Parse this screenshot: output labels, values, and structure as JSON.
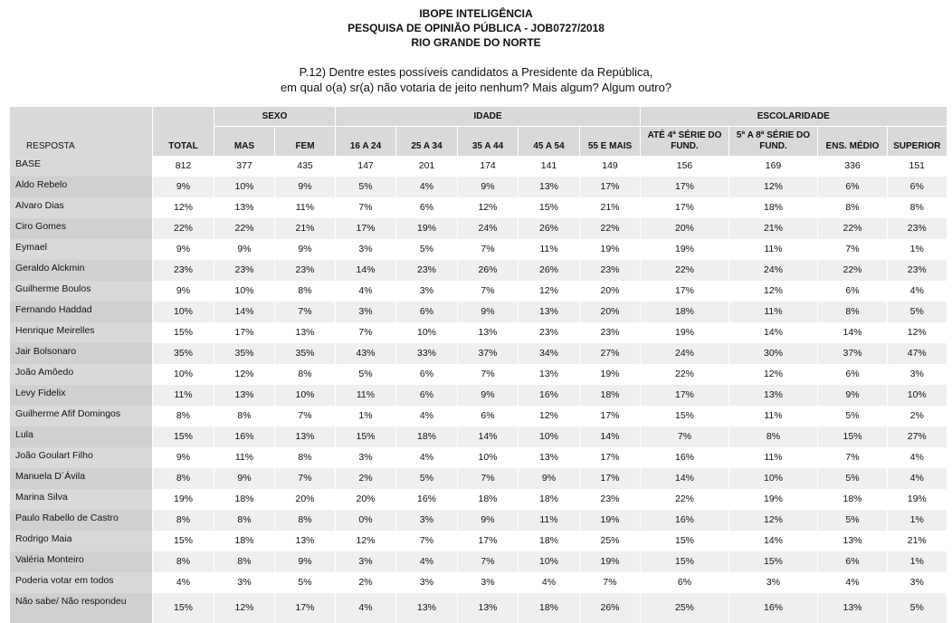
{
  "header": {
    "lines": [
      "IBOPE INTELIGÊNCIA",
      "PESQUISA DE OPINIÃO PÚBLICA - JOB0727/2018",
      "RIO GRANDE DO NORTE"
    ],
    "question": [
      "P.12) Dentre estes possíveis candidatos a Presidente da República,",
      "em qual o(a) sr(a) não votaria de jeito nenhum? Mais algum? Algum outro?"
    ]
  },
  "table": {
    "label_header": "RESPOSTA",
    "total_header": "TOTAL",
    "groups": [
      {
        "label": "SEXO",
        "columns": [
          "MAS",
          "FEM"
        ]
      },
      {
        "label": "IDADE",
        "columns": [
          "16 A 24",
          "25 A 34",
          "35 A 44",
          "45 A 54",
          "55 E MAIS"
        ]
      },
      {
        "label": "ESCOLARIDADE",
        "columns": [
          "ATÉ 4ª SÉRIE DO FUND.",
          "5ª A 8ª SÉRIE DO FUND.",
          "ENS. MÉDIO",
          "SUPERIOR"
        ]
      }
    ],
    "rows": [
      {
        "label": "BASE",
        "cells": [
          "812",
          "377",
          "435",
          "147",
          "201",
          "174",
          "141",
          "149",
          "156",
          "169",
          "336",
          "151"
        ]
      },
      {
        "label": "Aldo Rebelo",
        "cells": [
          "9%",
          "10%",
          "9%",
          "5%",
          "4%",
          "9%",
          "13%",
          "17%",
          "17%",
          "12%",
          "6%",
          "6%"
        ]
      },
      {
        "label": "Alvaro Dias",
        "cells": [
          "12%",
          "13%",
          "11%",
          "7%",
          "6%",
          "12%",
          "15%",
          "21%",
          "17%",
          "18%",
          "8%",
          "8%"
        ]
      },
      {
        "label": "Ciro Gomes",
        "cells": [
          "22%",
          "22%",
          "21%",
          "17%",
          "19%",
          "24%",
          "26%",
          "22%",
          "20%",
          "21%",
          "22%",
          "23%"
        ]
      },
      {
        "label": "Eymael",
        "cells": [
          "9%",
          "9%",
          "9%",
          "3%",
          "5%",
          "7%",
          "11%",
          "19%",
          "19%",
          "11%",
          "7%",
          "1%"
        ]
      },
      {
        "label": "Geraldo Alckmin",
        "cells": [
          "23%",
          "23%",
          "23%",
          "14%",
          "23%",
          "26%",
          "26%",
          "23%",
          "22%",
          "24%",
          "22%",
          "23%"
        ]
      },
      {
        "label": "Guilherme Boulos",
        "cells": [
          "9%",
          "10%",
          "8%",
          "4%",
          "3%",
          "7%",
          "12%",
          "20%",
          "17%",
          "12%",
          "6%",
          "4%"
        ]
      },
      {
        "label": "Fernando Haddad",
        "cells": [
          "10%",
          "14%",
          "7%",
          "3%",
          "6%",
          "9%",
          "13%",
          "20%",
          "18%",
          "11%",
          "8%",
          "5%"
        ]
      },
      {
        "label": "Henrique Meirelles",
        "cells": [
          "15%",
          "17%",
          "13%",
          "7%",
          "10%",
          "13%",
          "23%",
          "23%",
          "19%",
          "14%",
          "14%",
          "12%"
        ]
      },
      {
        "label": "Jair Bolsonaro",
        "cells": [
          "35%",
          "35%",
          "35%",
          "43%",
          "33%",
          "37%",
          "34%",
          "27%",
          "24%",
          "30%",
          "37%",
          "47%"
        ]
      },
      {
        "label": "João Amôedo",
        "cells": [
          "10%",
          "12%",
          "8%",
          "5%",
          "6%",
          "7%",
          "13%",
          "19%",
          "22%",
          "12%",
          "6%",
          "3%"
        ]
      },
      {
        "label": "Levy Fidelix",
        "cells": [
          "11%",
          "13%",
          "10%",
          "11%",
          "6%",
          "9%",
          "16%",
          "18%",
          "17%",
          "13%",
          "9%",
          "10%"
        ]
      },
      {
        "label": "Guilherme Afif Domingos",
        "cells": [
          "8%",
          "8%",
          "7%",
          "1%",
          "4%",
          "6%",
          "12%",
          "17%",
          "15%",
          "11%",
          "5%",
          "2%"
        ]
      },
      {
        "label": "Lula",
        "cells": [
          "15%",
          "16%",
          "13%",
          "15%",
          "18%",
          "14%",
          "10%",
          "14%",
          "7%",
          "8%",
          "15%",
          "27%"
        ]
      },
      {
        "label": "João Goulart Filho",
        "cells": [
          "9%",
          "11%",
          "8%",
          "3%",
          "4%",
          "10%",
          "13%",
          "17%",
          "16%",
          "11%",
          "7%",
          "4%"
        ]
      },
      {
        "label": "Manuela D´Ávila",
        "cells": [
          "8%",
          "9%",
          "7%",
          "2%",
          "5%",
          "7%",
          "9%",
          "17%",
          "14%",
          "10%",
          "5%",
          "4%"
        ]
      },
      {
        "label": "Marina Silva",
        "cells": [
          "19%",
          "18%",
          "20%",
          "20%",
          "16%",
          "18%",
          "18%",
          "23%",
          "22%",
          "19%",
          "18%",
          "19%"
        ]
      },
      {
        "label": "Paulo Rabello de Castro",
        "cells": [
          "8%",
          "8%",
          "8%",
          "0%",
          "3%",
          "9%",
          "11%",
          "19%",
          "16%",
          "12%",
          "5%",
          "1%"
        ]
      },
      {
        "label": "Rodrigo Maia",
        "cells": [
          "15%",
          "18%",
          "13%",
          "12%",
          "7%",
          "17%",
          "18%",
          "25%",
          "15%",
          "14%",
          "13%",
          "21%"
        ]
      },
      {
        "label": "Valéria Monteiro",
        "cells": [
          "8%",
          "8%",
          "9%",
          "3%",
          "4%",
          "7%",
          "10%",
          "19%",
          "15%",
          "15%",
          "6%",
          "1%"
        ]
      },
      {
        "label": "Poderia votar em todos",
        "cells": [
          "4%",
          "3%",
          "5%",
          "2%",
          "3%",
          "3%",
          "4%",
          "7%",
          "6%",
          "3%",
          "4%",
          "3%"
        ]
      },
      {
        "label": "Não sabe/ Não respondeu",
        "cells": [
          "15%",
          "12%",
          "17%",
          "4%",
          "13%",
          "13%",
          "18%",
          "26%",
          "25%",
          "16%",
          "13%",
          "5%"
        ]
      }
    ]
  }
}
